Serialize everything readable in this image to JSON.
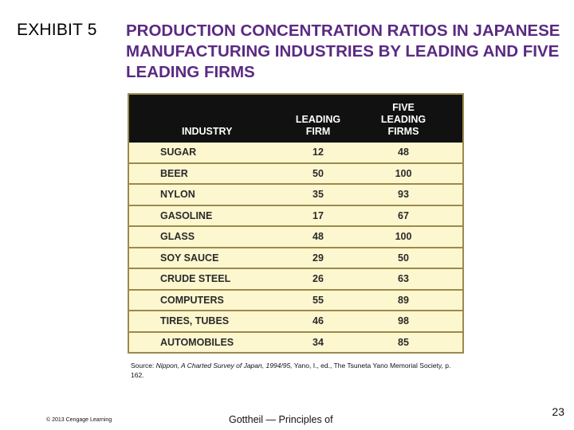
{
  "slide": {
    "exhibit_label": "EXHIBIT 5",
    "title": "PRODUCTION CONCENTRATION RATIOS IN JAPANESE MANUFACTURING INDUSTRIES BY LEADING AND FIVE LEADING FIRMS"
  },
  "table": {
    "headers": {
      "industry": "INDUSTRY",
      "leading_line1": "LEADING",
      "leading_line2": "FIRM",
      "five_line1": "FIVE",
      "five_line2": "LEADING",
      "five_line3": "FIRMS"
    },
    "rows": [
      {
        "industry": "SUGAR",
        "leading": "12",
        "five": "48"
      },
      {
        "industry": "BEER",
        "leading": "50",
        "five": "100"
      },
      {
        "industry": "NYLON",
        "leading": "35",
        "five": "93"
      },
      {
        "industry": "GASOLINE",
        "leading": "17",
        "five": "67"
      },
      {
        "industry": "GLASS",
        "leading": "48",
        "five": "100"
      },
      {
        "industry": "SOY SAUCE",
        "leading": "29",
        "five": "50"
      },
      {
        "industry": "CRUDE STEEL",
        "leading": "26",
        "five": "63"
      },
      {
        "industry": "COMPUTERS",
        "leading": "55",
        "five": "89"
      },
      {
        "industry": "TIRES, TUBES",
        "leading": "46",
        "five": "98"
      },
      {
        "industry": "AUTOMOBILES",
        "leading": "34",
        "five": "85"
      }
    ],
    "colors": {
      "header_bg": "#111111",
      "row_bg": "#fdf7cf",
      "border": "#9c8a4c"
    }
  },
  "source": {
    "prefix": "Source: ",
    "italic_part": "Nippon, A Charted Survey of Japan, 1994/95,",
    "rest": " Yano, I., ed., The Tsuneta Yano Memorial Society, p. 162."
  },
  "footer": {
    "copyright": "© 2013 Cengage Learning",
    "text": "Gottheil — Principles of",
    "page_number": "23"
  },
  "theme": {
    "title_color": "#5a2a82"
  }
}
